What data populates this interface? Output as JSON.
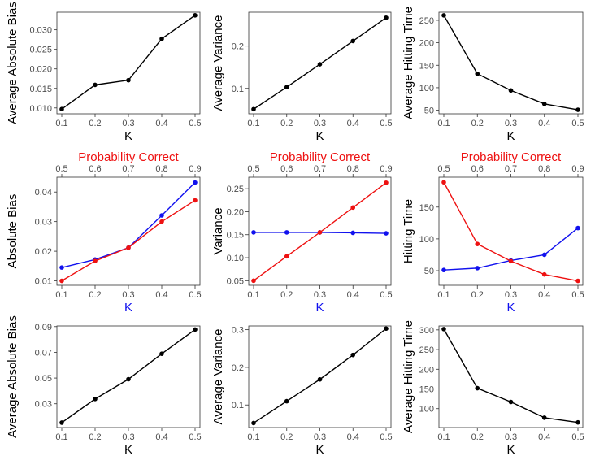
{
  "colors": {
    "series_black": "#000000",
    "series_red": "#ee1111",
    "series_blue": "#1111ee",
    "top_axis_title": "#ee1111",
    "bottom_axis_title_middle_row": "#1111ee",
    "panel_border": "#333333"
  },
  "chart_data": [
    {
      "type": "line",
      "row": 1,
      "col": 1,
      "xlabel": "K",
      "ylabel": "Average Absolute Bias",
      "xlim": [
        0.1,
        0.5
      ],
      "ylim": [
        0.0085,
        0.0345
      ],
      "x_ticks": [
        0.1,
        0.2,
        0.3,
        0.4,
        0.5
      ],
      "x_tick_labels": [
        "0.1",
        "0.2",
        "0.3",
        "0.4",
        "0.5"
      ],
      "y_ticks": [
        0.01,
        0.015,
        0.02,
        0.025,
        0.03
      ],
      "y_tick_labels": [
        "0.010",
        "0.015",
        "0.020",
        "0.025",
        "0.030"
      ],
      "series": [
        {
          "name": "Average Absolute Bias",
          "color": "#000000",
          "x": [
            0.1,
            0.2,
            0.3,
            0.4,
            0.5
          ],
          "y": [
            0.0097,
            0.0159,
            0.0171,
            0.0277,
            0.0337
          ]
        }
      ]
    },
    {
      "type": "line",
      "row": 1,
      "col": 2,
      "xlabel": "K",
      "ylabel": "Average Variance",
      "xlim": [
        0.1,
        0.5
      ],
      "ylim": [
        0.04,
        0.28
      ],
      "x_ticks": [
        0.1,
        0.2,
        0.3,
        0.4,
        0.5
      ],
      "x_tick_labels": [
        "0.1",
        "0.2",
        "0.3",
        "0.4",
        "0.5"
      ],
      "y_ticks": [
        0.1,
        0.2
      ],
      "y_tick_labels": [
        "0.1",
        "0.2"
      ],
      "series": [
        {
          "name": "Average Variance",
          "color": "#000000",
          "x": [
            0.1,
            0.2,
            0.3,
            0.4,
            0.5
          ],
          "y": [
            0.051,
            0.103,
            0.157,
            0.212,
            0.267
          ]
        }
      ]
    },
    {
      "type": "line",
      "row": 1,
      "col": 3,
      "xlabel": "K",
      "ylabel": "Average Hitting Time",
      "xlim": [
        0.1,
        0.5
      ],
      "ylim": [
        42,
        268
      ],
      "x_ticks": [
        0.1,
        0.2,
        0.3,
        0.4,
        0.5
      ],
      "x_tick_labels": [
        "0.1",
        "0.2",
        "0.3",
        "0.4",
        "0.5"
      ],
      "y_ticks": [
        50,
        100,
        150,
        200,
        250
      ],
      "y_tick_labels": [
        "50",
        "100",
        "150",
        "200",
        "250"
      ],
      "series": [
        {
          "name": "Average Hitting Time",
          "color": "#000000",
          "x": [
            0.1,
            0.2,
            0.3,
            0.4,
            0.5
          ],
          "y": [
            261,
            131,
            94,
            64,
            51
          ]
        }
      ]
    },
    {
      "type": "line",
      "row": 2,
      "col": 1,
      "xlabel": "K",
      "ylabel": "Absolute Bias",
      "top_axis_label": "Probability Correct",
      "xlim": [
        0.1,
        0.5
      ],
      "ylim": [
        0.0085,
        0.045
      ],
      "x_ticks": [
        0.1,
        0.2,
        0.3,
        0.4,
        0.5
      ],
      "x_tick_labels": [
        "0.1",
        "0.2",
        "0.3",
        "0.4",
        "0.5"
      ],
      "top_ticks": [
        0.5,
        0.6,
        0.7,
        0.8,
        0.9
      ],
      "top_tick_labels": [
        "0.5",
        "0.6",
        "0.7",
        "0.8",
        "0.9"
      ],
      "y_ticks": [
        0.01,
        0.02,
        0.03,
        0.04
      ],
      "y_tick_labels": [
        "0.01",
        "0.02",
        "0.03",
        "0.04"
      ],
      "series": [
        {
          "name": "Absolute Bias (K)",
          "color": "#1111ee",
          "x": [
            0.1,
            0.2,
            0.3,
            0.4,
            0.5
          ],
          "y": [
            0.0145,
            0.0172,
            0.0212,
            0.0321,
            0.0432
          ]
        },
        {
          "name": "Absolute Bias (Probability Correct)",
          "color": "#ee1111",
          "x": [
            0.1,
            0.2,
            0.3,
            0.4,
            0.5
          ],
          "y": [
            0.01,
            0.0167,
            0.0212,
            0.03,
            0.0372
          ]
        }
      ]
    },
    {
      "type": "line",
      "row": 2,
      "col": 2,
      "xlabel": "K",
      "ylabel": "Variance",
      "top_axis_label": "Probability Correct",
      "xlim": [
        0.1,
        0.5
      ],
      "ylim": [
        0.04,
        0.275
      ],
      "x_ticks": [
        0.1,
        0.2,
        0.3,
        0.4,
        0.5
      ],
      "x_tick_labels": [
        "0.1",
        "0.2",
        "0.3",
        "0.4",
        "0.5"
      ],
      "top_ticks": [
        0.5,
        0.6,
        0.7,
        0.8,
        0.9
      ],
      "top_tick_labels": [
        "0.5",
        "0.6",
        "0.7",
        "0.8",
        "0.9"
      ],
      "y_ticks": [
        0.05,
        0.1,
        0.15,
        0.2,
        0.25
      ],
      "y_tick_labels": [
        "0.05",
        "0.10",
        "0.15",
        "0.20",
        "0.25"
      ],
      "series": [
        {
          "name": "Variance (K)",
          "color": "#1111ee",
          "x": [
            0.1,
            0.2,
            0.3,
            0.4,
            0.5
          ],
          "y": [
            0.155,
            0.155,
            0.155,
            0.154,
            0.153
          ]
        },
        {
          "name": "Variance (Probability Correct)",
          "color": "#ee1111",
          "x": [
            0.1,
            0.2,
            0.3,
            0.4,
            0.5
          ],
          "y": [
            0.05,
            0.103,
            0.155,
            0.209,
            0.263
          ]
        }
      ]
    },
    {
      "type": "line",
      "row": 2,
      "col": 3,
      "xlabel": "K",
      "ylabel": "Hitting Time",
      "top_axis_label": "Probability Correct",
      "xlim": [
        0.1,
        0.5
      ],
      "ylim": [
        27,
        197
      ],
      "x_ticks": [
        0.1,
        0.2,
        0.3,
        0.4,
        0.5
      ],
      "x_tick_labels": [
        "0.1",
        "0.2",
        "0.3",
        "0.4",
        "0.5"
      ],
      "top_ticks": [
        0.5,
        0.6,
        0.7,
        0.8,
        0.9
      ],
      "top_tick_labels": [
        "0.5",
        "0.6",
        "0.7",
        "0.8",
        "0.9"
      ],
      "y_ticks": [
        50,
        100,
        150
      ],
      "y_tick_labels": [
        "50",
        "100",
        "150"
      ],
      "series": [
        {
          "name": "Hitting Time (K)",
          "color": "#1111ee",
          "x": [
            0.1,
            0.2,
            0.3,
            0.4,
            0.5
          ],
          "y": [
            51,
            54,
            66,
            75,
            117
          ]
        },
        {
          "name": "Hitting Time (Probability Correct)",
          "color": "#ee1111",
          "x": [
            0.1,
            0.2,
            0.3,
            0.4,
            0.5
          ],
          "y": [
            189,
            92,
            65,
            44,
            34
          ]
        }
      ]
    },
    {
      "type": "line",
      "row": 3,
      "col": 1,
      "xlabel": "K",
      "ylabel": "Average Absolute Bias",
      "xlim": [
        0.1,
        0.5
      ],
      "ylim": [
        0.0115,
        0.0905
      ],
      "x_ticks": [
        0.1,
        0.2,
        0.3,
        0.4,
        0.5
      ],
      "x_tick_labels": [
        "0.1",
        "0.2",
        "0.3",
        "0.4",
        "0.5"
      ],
      "y_ticks": [
        0.03,
        0.05,
        0.07,
        0.09
      ],
      "y_tick_labels": [
        "0.03",
        "0.05",
        "0.07",
        "0.09"
      ],
      "series": [
        {
          "name": "Average Absolute Bias",
          "color": "#000000",
          "x": [
            0.1,
            0.2,
            0.3,
            0.4,
            0.5
          ],
          "y": [
            0.0153,
            0.0337,
            0.0491,
            0.0689,
            0.0877
          ]
        }
      ]
    },
    {
      "type": "line",
      "row": 3,
      "col": 2,
      "xlabel": "K",
      "ylabel": "Average Variance",
      "xlim": [
        0.1,
        0.5
      ],
      "ylim": [
        0.04,
        0.31
      ],
      "x_ticks": [
        0.1,
        0.2,
        0.3,
        0.4,
        0.5
      ],
      "x_tick_labels": [
        "0.1",
        "0.2",
        "0.3",
        "0.4",
        "0.5"
      ],
      "y_ticks": [
        0.1,
        0.2,
        0.3
      ],
      "y_tick_labels": [
        "0.1",
        "0.2",
        "0.3"
      ],
      "series": [
        {
          "name": "Average Variance",
          "color": "#000000",
          "x": [
            0.1,
            0.2,
            0.3,
            0.4,
            0.5
          ],
          "y": [
            0.052,
            0.11,
            0.168,
            0.233,
            0.303
          ]
        }
      ]
    },
    {
      "type": "line",
      "row": 3,
      "col": 3,
      "xlabel": "K",
      "ylabel": "Average Hitting Time",
      "xlim": [
        0.1,
        0.5
      ],
      "ylim": [
        52,
        310
      ],
      "x_ticks": [
        0.1,
        0.2,
        0.3,
        0.4,
        0.5
      ],
      "x_tick_labels": [
        "0.1",
        "0.2",
        "0.3",
        "0.4",
        "0.5"
      ],
      "y_ticks": [
        100,
        150,
        200,
        250,
        300
      ],
      "y_tick_labels": [
        "100",
        "150",
        "200",
        "250",
        "300"
      ],
      "series": [
        {
          "name": "Average Hitting Time",
          "color": "#000000",
          "x": [
            0.1,
            0.2,
            0.3,
            0.4,
            0.5
          ],
          "y": [
            302,
            152,
            117,
            77,
            65
          ]
        }
      ]
    }
  ]
}
